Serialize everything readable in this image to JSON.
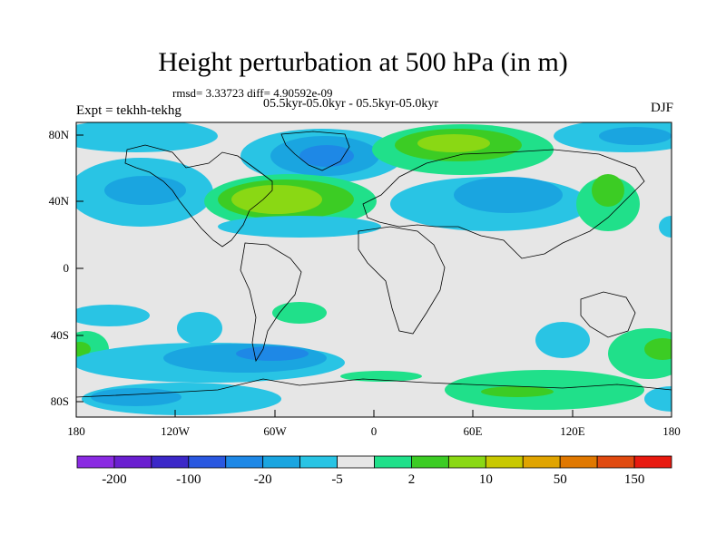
{
  "title": "Height perturbation at 500 hPa (in m)",
  "stats_line": "rmsd= 3.33723 diff= 4.90592e-09",
  "period_line": "05.5kyr-05.0kyr - 05.5kyr-05.0kyr",
  "experiment": "Expt = tekhh-tekhg",
  "season": "DJF",
  "map": {
    "projection": "cylindrical-equidistant",
    "lon_range": [
      -180,
      180
    ],
    "lat_range": [
      -90,
      90
    ],
    "y_tick_labels": [
      "80N",
      "40N",
      "0",
      "40S",
      "80S"
    ],
    "x_tick_labels": [
      "180",
      "120W",
      "60W",
      "0",
      "60E",
      "120E",
      "180"
    ],
    "background_color": "#e6e6e6"
  },
  "colorbar": {
    "colors": [
      "#8a2be2",
      "#6a1fd0",
      "#3c28c8",
      "#2a58e0",
      "#1e88e6",
      "#1aa5e0",
      "#29c4e4",
      "#e6e6e6",
      "#20e08a",
      "#3ccc24",
      "#8ad814",
      "#c8c800",
      "#e0a400",
      "#e07800",
      "#e04a10",
      "#e81a10"
    ],
    "labels": [
      "-200",
      "-100",
      "-20",
      "-5",
      "2",
      "10",
      "50",
      "150"
    ]
  }
}
